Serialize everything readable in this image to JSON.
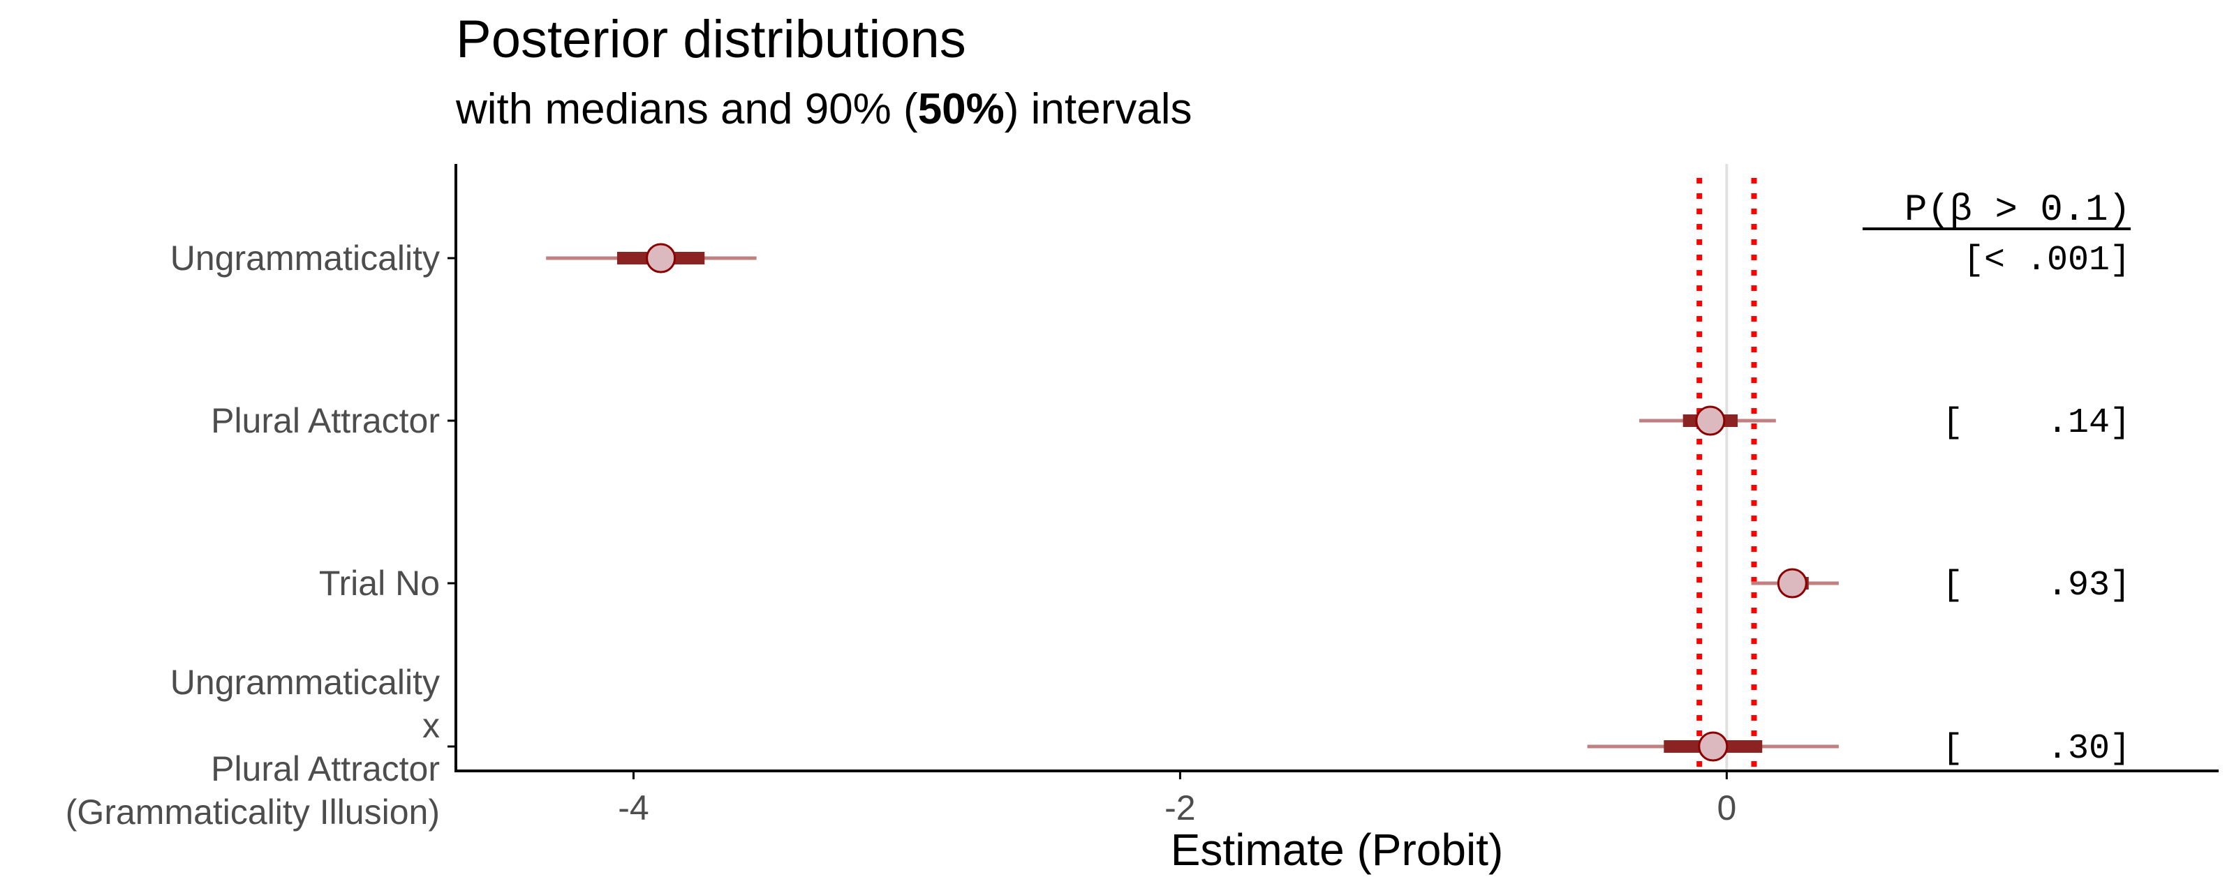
{
  "chart_data": {
    "type": "interval",
    "title": "Posterior distributions",
    "subtitle_pre": "with medians and 90% (",
    "subtitle_bold": "50%",
    "subtitle_post": ") intervals",
    "xlabel": "Estimate (Probit)",
    "xlim": [
      -4.65,
      1.8
    ],
    "xticks": [
      -4,
      -2,
      0
    ],
    "xtick_labels": [
      "-4",
      "-2",
      "0"
    ],
    "reference_line": 0,
    "rope": [
      -0.1,
      0.1
    ],
    "prob_header": "P(β > 0.1)",
    "params": [
      {
        "label_lines": [
          "Ungrammaticality"
        ],
        "median": -3.9,
        "ci50": [
          -4.06,
          -3.74
        ],
        "ci90": [
          -4.32,
          -3.55
        ],
        "prob_label": "[< .001]"
      },
      {
        "label_lines": [
          "Plural Attractor"
        ],
        "median": -0.06,
        "ci50": [
          -0.16,
          0.04
        ],
        "ci90": [
          -0.32,
          0.18
        ],
        "prob_label": "[    .14]"
      },
      {
        "label_lines": [
          "Trial No"
        ],
        "median": 0.24,
        "ci50": [
          0.2,
          0.3
        ],
        "ci90": [
          0.09,
          0.41
        ],
        "prob_label": "[    .93]"
      },
      {
        "label_lines": [
          "Ungrammaticality",
          "x",
          "Plural Attractor",
          "(Grammaticality Illusion)"
        ],
        "median": -0.05,
        "ci50": [
          -0.23,
          0.13
        ],
        "ci90": [
          -0.51,
          0.41
        ],
        "prob_label": "[    .30]"
      }
    ],
    "colors": {
      "interval_90": "#c08080",
      "interval_50": "#8b2323",
      "point_fill": "#dcb9be",
      "point_stroke": "#8b0000",
      "rope_line": "#ff0000",
      "zero_line": "#e0e0e0",
      "axis": "#000000"
    }
  }
}
